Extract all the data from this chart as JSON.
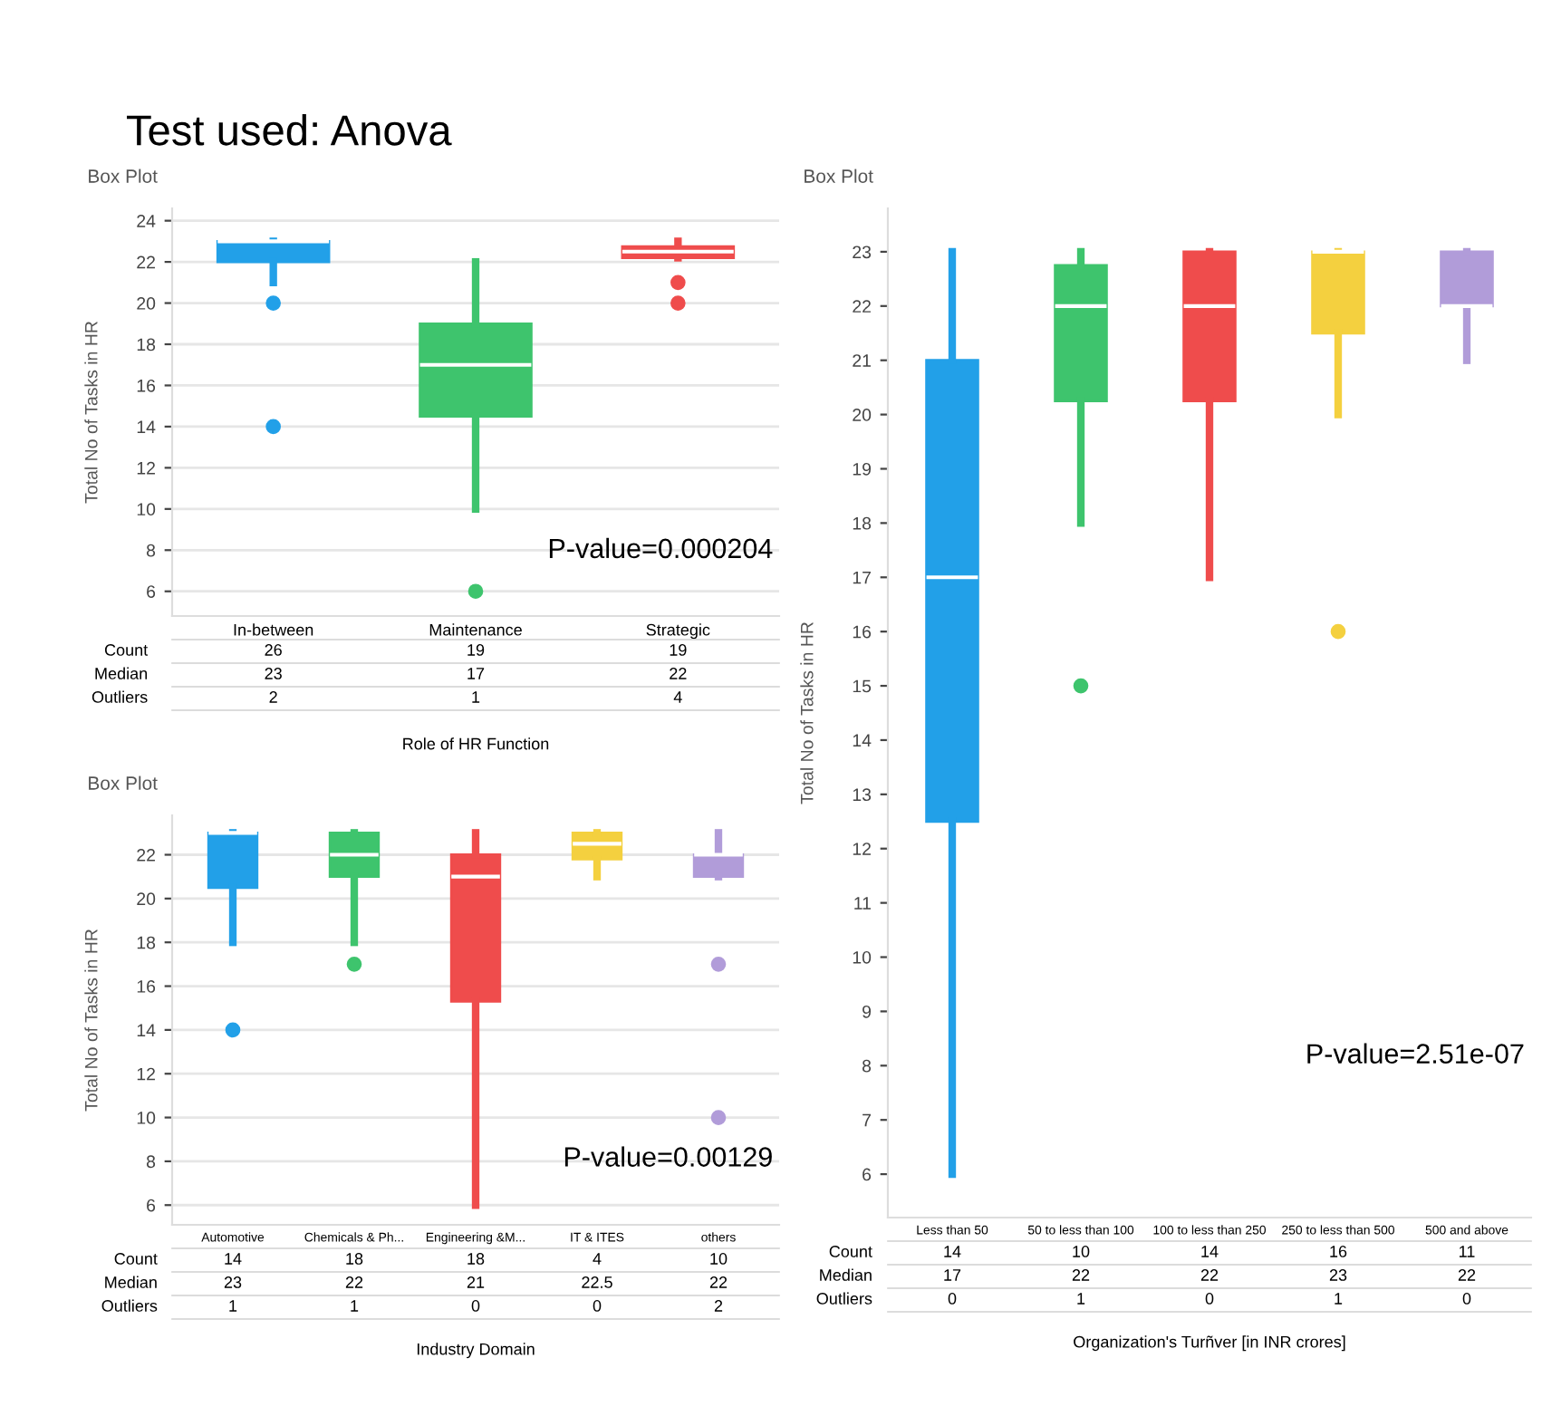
{
  "chart_data": [
    {
      "type": "box",
      "title": "Test used: Anova",
      "subtitle": "Box Plot",
      "xlabel": "Role of HR Function",
      "ylabel": "Total No of Tasks in HR",
      "categories": [
        "In-between",
        "Maintenance",
        "Strategic"
      ],
      "colors": [
        "#22a0e8",
        "#3ec46d",
        "#ef4c4c"
      ],
      "boxes": [
        {
          "low": 21,
          "q1": 22,
          "median": 23,
          "q3": 23,
          "high": 23,
          "outliers": [
            20,
            14
          ]
        },
        {
          "low": 10,
          "q1": 14.5,
          "median": 17,
          "q3": 19,
          "high": 22,
          "outliers": [
            6
          ]
        },
        {
          "low": 22.2,
          "q1": 22.2,
          "median": 22.5,
          "q3": 22.75,
          "high": 23,
          "outliers": [
            21,
            20
          ]
        }
      ],
      "ylim": [
        4.8,
        24.6
      ],
      "yticks": [
        6,
        8,
        10,
        12,
        14,
        16,
        18,
        20,
        22,
        24
      ],
      "grid": "y",
      "marker": "circle",
      "annotations": [
        "P-value=0.000204",
        "Count",
        "26",
        "19",
        "19",
        "Median",
        "23",
        "17",
        "22",
        "Outliers",
        "2",
        "1",
        "4"
      ]
    },
    {
      "type": "box",
      "title": "Box Plot",
      "xlabel": "Industry Domain",
      "ylabel": "Total No of Tasks in HR",
      "categories": [
        "Automotive",
        "Chemicals & Ph...",
        "Engineering &M...",
        "IT & ITES",
        "others"
      ],
      "colors": [
        "#22a0e8",
        "#3ec46d",
        "#ef4c4c",
        "#f4d03f",
        "#b19cd9"
      ],
      "boxes": [
        {
          "low": 18,
          "q1": 20.5,
          "median": 23,
          "q3": 23,
          "high": 23,
          "outliers": [
            14
          ]
        },
        {
          "low": 18,
          "q1": 21,
          "median": 22,
          "q3": 23,
          "high": 23,
          "outliers": [
            17
          ]
        },
        {
          "low": 6,
          "q1": 15.3,
          "median": 21,
          "q3": 22,
          "high": 23
        },
        {
          "low": 21,
          "q1": 21.8,
          "median": 22.5,
          "q3": 23,
          "high": 23
        },
        {
          "low": 21,
          "q1": 21,
          "median": 22,
          "q3": 22,
          "high": 23,
          "outliers": [
            17,
            10
          ]
        }
      ],
      "ylim": [
        5.1,
        23.8
      ],
      "yticks": [
        6,
        8,
        10,
        12,
        14,
        16,
        18,
        20,
        22
      ],
      "grid": "y",
      "marker": "circle",
      "annotations": [
        "P-value=0.00129",
        "Count",
        "14",
        "18",
        "18",
        "4",
        "10",
        "Median",
        "23",
        "22",
        "21",
        "22.5",
        "22",
        "Outliers",
        "1",
        "1",
        "0",
        "0",
        "2"
      ]
    },
    {
      "type": "box",
      "title": "Box Plot",
      "xlabel": "Organization's Turñver [in INR crores]",
      "ylabel": "Total No of Tasks in HR",
      "categories": [
        "Less than 50",
        "50 to less than 100",
        "100 to less than 250",
        "250 to less than 500",
        "500 and above"
      ],
      "colors": [
        "#22a0e8",
        "#3ec46d",
        "#ef4c4c",
        "#f4d03f",
        "#b19cd9"
      ],
      "boxes": [
        {
          "low": 6,
          "q1": 12.5,
          "median": 17,
          "q3": 21,
          "high": 23
        },
        {
          "low": 18,
          "q1": 20.25,
          "median": 22,
          "q3": 22.75,
          "high": 23,
          "outliers": [
            15
          ]
        },
        {
          "low": 17,
          "q1": 20.25,
          "median": 22,
          "q3": 23,
          "high": 23
        },
        {
          "low": 20,
          "q1": 21.5,
          "median": 23,
          "q3": 23,
          "high": 23,
          "outliers": [
            16
          ]
        },
        {
          "low": 21,
          "q1": 22,
          "median": 22,
          "q3": 23,
          "high": 23
        }
      ],
      "ylim": [
        5.2,
        23.8
      ],
      "yticks": [
        6,
        7,
        8,
        9,
        10,
        11,
        12,
        13,
        14,
        15,
        16,
        17,
        18,
        19,
        20,
        21,
        22,
        23
      ],
      "grid": false,
      "marker": "circle",
      "annotations": [
        "P-value=2.51e-07",
        "Count",
        "14",
        "10",
        "14",
        "16",
        "11",
        "Median",
        "17",
        "22",
        "22",
        "23",
        "22",
        "Outliers",
        "0",
        "1",
        "0",
        "1",
        "0"
      ]
    }
  ]
}
